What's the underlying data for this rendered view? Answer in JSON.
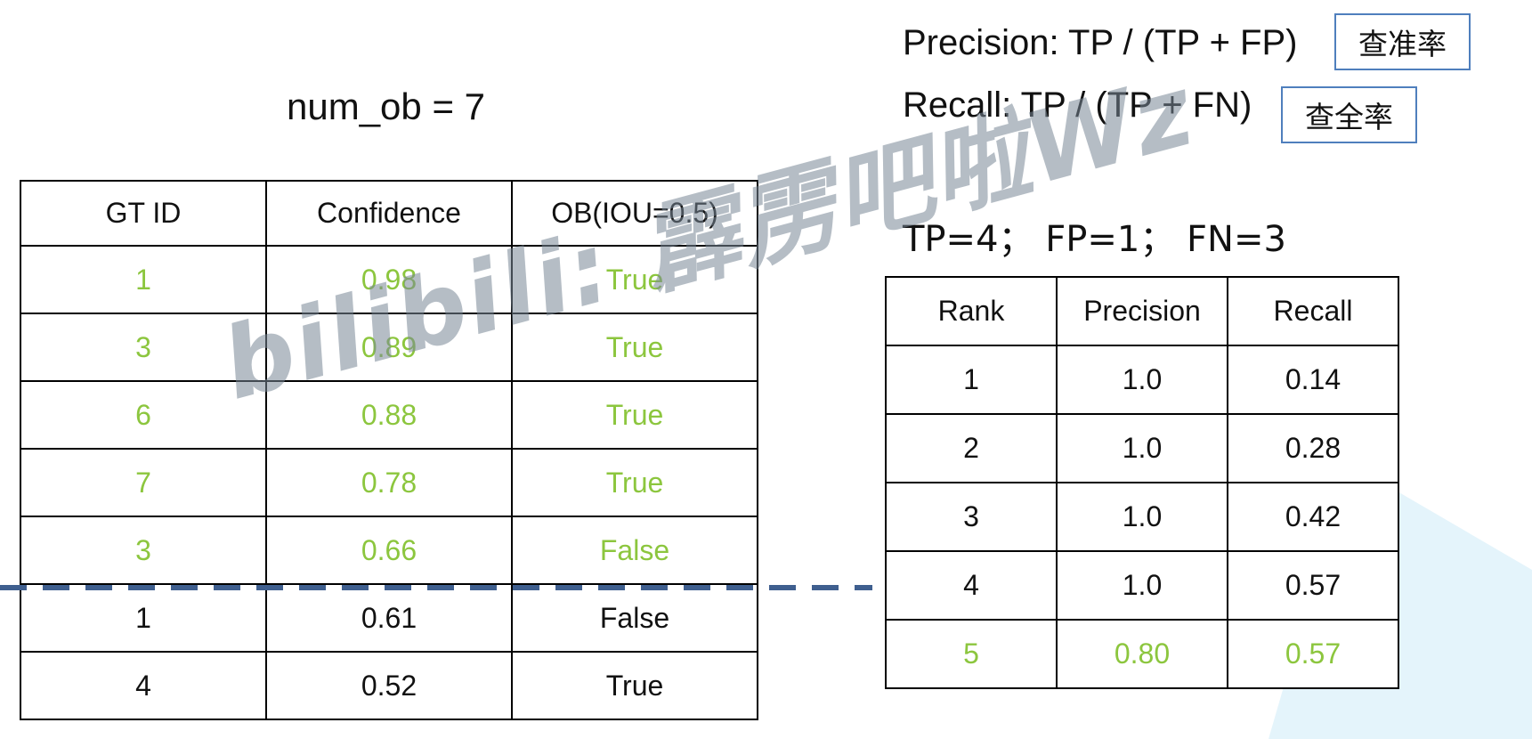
{
  "num_ob": "num_ob = 7",
  "precision_formula": "Precision: TP / (TP + FP)",
  "precision_term": "查准率",
  "recall_formula": "Recall: TP / (TP + FN)",
  "recall_term": "查全率",
  "counts": "TP=4； FP=1； FN=3",
  "watermark": "bilibili: 霹雳吧啦Wz",
  "colors": {
    "accent_green": "#8cc63e",
    "divider_blue": "#3f5f8f",
    "box_border": "#4f7fbd",
    "triangle": "#e4f4fb"
  },
  "detections_table": {
    "headers": [
      "GT ID",
      "Confidence",
      "OB(IOU=0.5)"
    ],
    "rows": [
      [
        "1",
        "0.98",
        "True"
      ],
      [
        "3",
        "0.89",
        "True"
      ],
      [
        "6",
        "0.88",
        "True"
      ],
      [
        "7",
        "0.78",
        "True"
      ],
      [
        "3",
        "0.66",
        "False"
      ],
      [
        "1",
        "0.61",
        "False"
      ],
      [
        "4",
        "0.52",
        "True"
      ]
    ]
  },
  "pr_table": {
    "headers": [
      "Rank",
      "Precision",
      "Recall"
    ],
    "rows": [
      [
        "1",
        "1.0",
        "0.14"
      ],
      [
        "2",
        "1.0",
        "0.28"
      ],
      [
        "3",
        "1.0",
        "0.42"
      ],
      [
        "4",
        "1.0",
        "0.57"
      ],
      [
        "5",
        "0.80",
        "0.57"
      ]
    ]
  }
}
